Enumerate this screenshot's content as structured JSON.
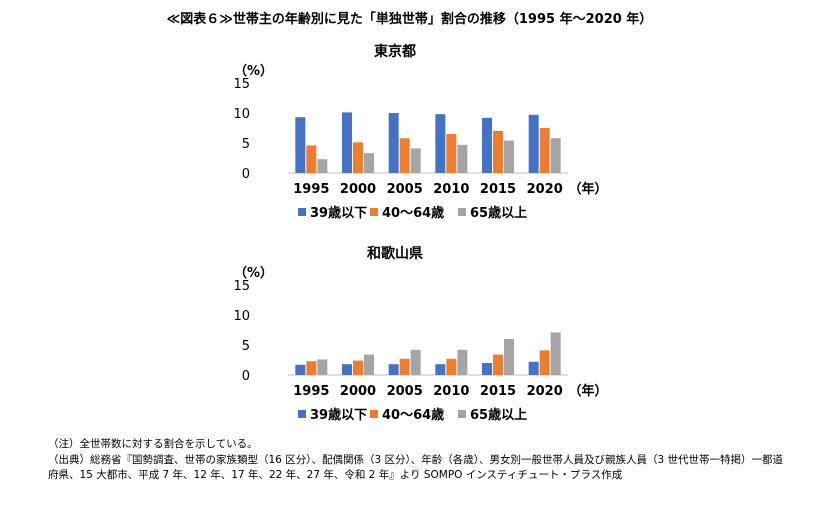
{
  "figure_title": "≪図表６≫世帯主の年齢別に見た「単独世帯」割合の推移（1995 年～2020 年）",
  "chart_data": [
    {
      "type": "bar",
      "title": "東京都",
      "ylabel": "（%）",
      "xlabel": "（年）",
      "ylim": [
        0,
        15
      ],
      "yticks": [
        0,
        5,
        10,
        15
      ],
      "categories": [
        "1995",
        "2000",
        "2005",
        "2010",
        "2015",
        "2020"
      ],
      "series": [
        {
          "name": "39歳以下",
          "color": "#4472C4",
          "values": [
            9.3,
            10.1,
            10.0,
            9.8,
            9.2,
            9.7
          ]
        },
        {
          "name": "40～64歳",
          "color": "#ED7D31",
          "values": [
            4.6,
            5.1,
            5.8,
            6.5,
            7.0,
            7.5
          ]
        },
        {
          "name": "65歳以上",
          "color": "#A5A5A5",
          "values": [
            2.3,
            3.3,
            4.1,
            4.7,
            5.4,
            5.8
          ]
        }
      ],
      "legend": "bottom"
    },
    {
      "type": "bar",
      "title": "和歌山県",
      "ylabel": "（%）",
      "xlabel": "（年）",
      "ylim": [
        0,
        15
      ],
      "yticks": [
        0,
        5,
        10,
        15
      ],
      "categories": [
        "1995",
        "2000",
        "2005",
        "2010",
        "2015",
        "2020"
      ],
      "series": [
        {
          "name": "39歳以下",
          "color": "#4472C4",
          "values": [
            1.7,
            1.8,
            1.8,
            1.8,
            2.0,
            2.2
          ]
        },
        {
          "name": "40～64歳",
          "color": "#ED7D31",
          "values": [
            2.3,
            2.4,
            2.7,
            2.7,
            3.4,
            4.1
          ]
        },
        {
          "name": "65歳以上",
          "color": "#A5A5A5",
          "values": [
            2.6,
            3.4,
            4.2,
            4.2,
            6.0,
            7.1
          ]
        }
      ],
      "legend": "bottom"
    }
  ],
  "notes": {
    "note1": "（注）全世帯数に対する割合を示している。",
    "note2": "（出典）総務省『国勢調査、世帯の家族類型（16 区分）、配偶関係（3 区分）、年齢（各歳）、男女別一般世帯人員及び親族人員（3 世代世帯一特掲）一都道府県、15 大都市、平成 7 年、12 年、17 年、22 年、27 年、令和 2 年』より SOMPO インスティチュート・プラス作成"
  }
}
